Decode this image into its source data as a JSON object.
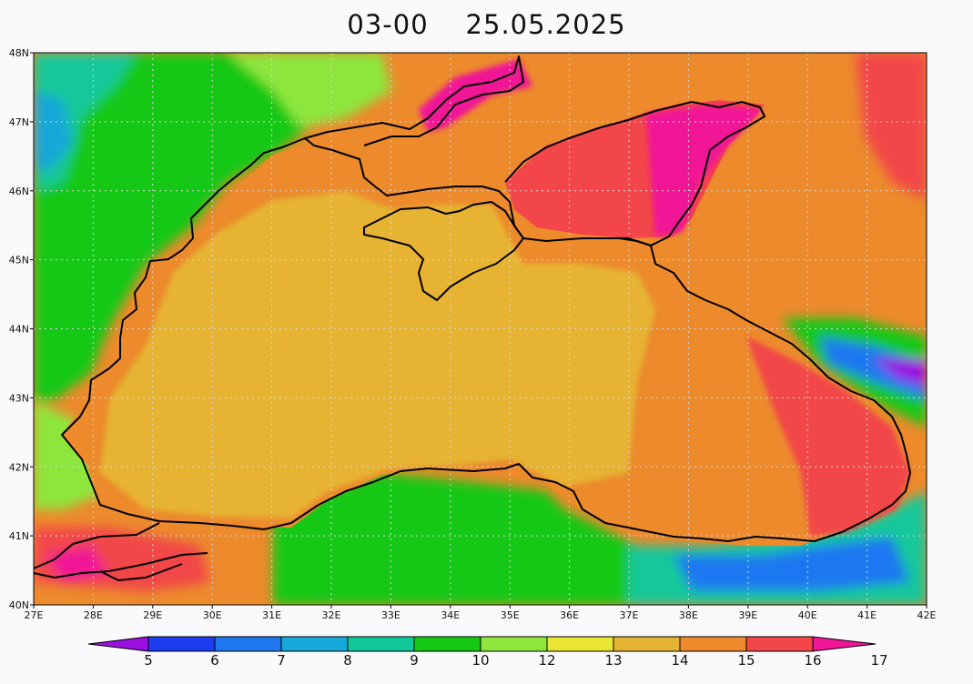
{
  "title": {
    "time": "03-00",
    "date": "25.05.2025"
  },
  "map": {
    "lon_range": [
      27,
      42
    ],
    "lat_range": [
      40,
      48
    ],
    "lon_ticks": [
      "27E",
      "28E",
      "29E",
      "30E",
      "31E",
      "32E",
      "33E",
      "34E",
      "35E",
      "36E",
      "37E",
      "38E",
      "39E",
      "40E",
      "41E",
      "42E"
    ],
    "lat_ticks": [
      "40N",
      "41N",
      "42N",
      "43N",
      "44N",
      "45N",
      "46N",
      "47N",
      "48N"
    ],
    "grid": "dotted"
  },
  "colorbar": {
    "labels": [
      "5",
      "6",
      "7",
      "8",
      "9",
      "10",
      "12",
      "13",
      "14",
      "15",
      "16",
      "17"
    ],
    "colors": [
      "#9a10e0",
      "#1e3cf0",
      "#1e78f0",
      "#16a8d8",
      "#12c89a",
      "#14c814",
      "#8ee63c",
      "#e8e632",
      "#e6b432",
      "#ec8a2c",
      "#f2464a",
      "#f01496"
    ],
    "extend": "both"
  },
  "palette": {
    "sea_main": "#e6b432",
    "sea_edge": "#ec8a2c",
    "sea_warm": "#f2464a",
    "sea_hot": "#f01496",
    "land_cool": "#14c814",
    "land_mild": "#8ee63c",
    "land_teal": "#12c89a",
    "land_cold": "#1e78f0",
    "coast": "#000000"
  }
}
